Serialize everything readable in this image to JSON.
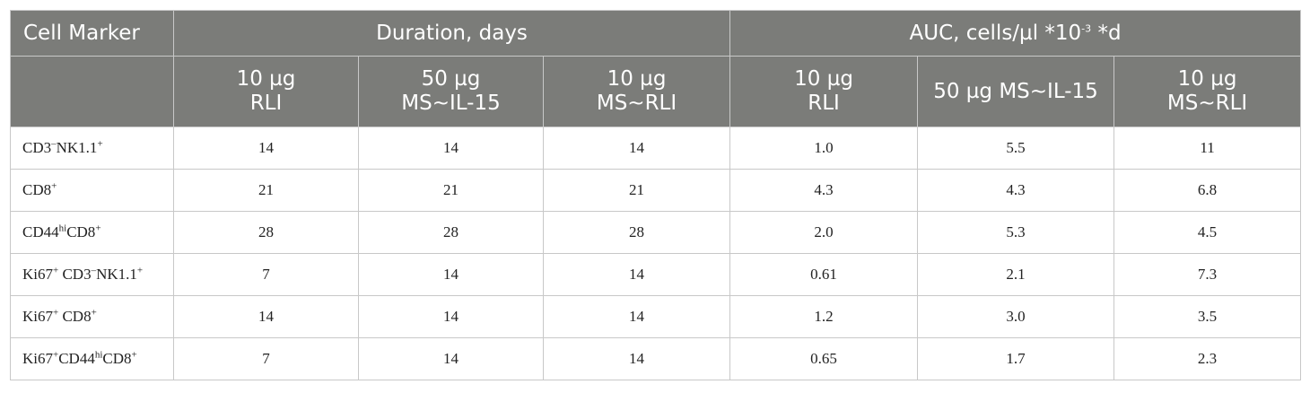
{
  "table": {
    "headers": {
      "cell_marker": "Cell Marker",
      "duration_group": "Duration, days",
      "auc_group_prefix": "AUC, cells/µl *10",
      "auc_group_exp": "-3",
      "auc_group_suffix": " *d",
      "sub": [
        {
          "line1": "10 µg",
          "line2": "RLI"
        },
        {
          "line1": "50 µg",
          "line2": "MS~IL-15"
        },
        {
          "line1": "10 µg",
          "line2": "MS~RLI"
        },
        {
          "line1": "10 µg",
          "line2": "RLI"
        },
        {
          "line1": "50 µg MS~IL-15",
          "line2": ""
        },
        {
          "line1": "10 µg",
          "line2": "MS~RLI"
        }
      ]
    },
    "rows": [
      {
        "marker": [
          {
            "t": "CD3"
          },
          {
            "s": "–"
          },
          {
            "t": "NK1.1"
          },
          {
            "s": "+"
          }
        ],
        "values": [
          "14",
          "14",
          "14",
          "1.0",
          "5.5",
          "11"
        ]
      },
      {
        "marker": [
          {
            "t": "CD8"
          },
          {
            "s": "+"
          }
        ],
        "values": [
          "21",
          "21",
          "21",
          "4.3",
          "4.3",
          "6.8"
        ]
      },
      {
        "marker": [
          {
            "t": "CD44"
          },
          {
            "s": "hi"
          },
          {
            "t": "CD8"
          },
          {
            "s": "+"
          }
        ],
        "values": [
          "28",
          "28",
          "28",
          "2.0",
          "5.3",
          "4.5"
        ]
      },
      {
        "marker": [
          {
            "t": "Ki67"
          },
          {
            "s": "+"
          },
          {
            "t": " CD3"
          },
          {
            "s": "–"
          },
          {
            "t": "NK1.1"
          },
          {
            "s": "+"
          }
        ],
        "values": [
          "7",
          "14",
          "14",
          "0.61",
          "2.1",
          "7.3"
        ]
      },
      {
        "marker": [
          {
            "t": "Ki67"
          },
          {
            "s": "+"
          },
          {
            "t": " CD8"
          },
          {
            "s": "+"
          }
        ],
        "values": [
          "14",
          "14",
          "14",
          "1.2",
          "3.0",
          "3.5"
        ]
      },
      {
        "marker": [
          {
            "t": "Ki67"
          },
          {
            "s": "+"
          },
          {
            "t": "CD44"
          },
          {
            "s": "hi"
          },
          {
            "t": "CD8"
          },
          {
            "s": "+"
          }
        ],
        "values": [
          "7",
          "14",
          "14",
          "0.65",
          "1.7",
          "2.3"
        ]
      }
    ]
  },
  "colors": {
    "header_bg": "#7b7c79",
    "header_text": "#ffffff",
    "border": "#c8c8c8",
    "body_text": "#222222"
  }
}
